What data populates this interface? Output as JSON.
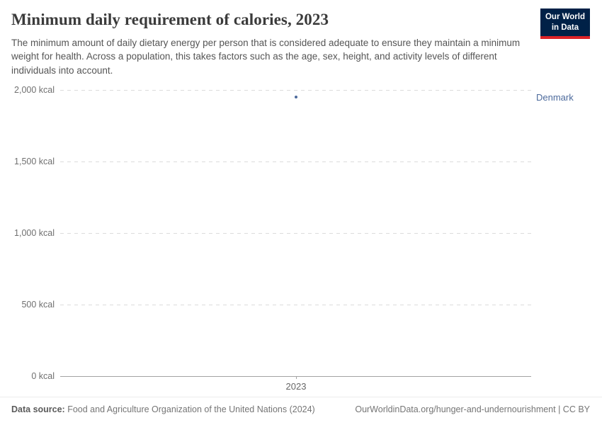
{
  "header": {
    "title": "Minimum daily requirement of calories, 2023",
    "subtitle": "The minimum amount of daily dietary energy per person that is considered adequate to ensure they maintain a minimum weight for health. Across a population, this takes factors such as the age, sex, height, and activity levels of different individuals into account."
  },
  "logo": {
    "line1": "Our World",
    "line2": "in Data",
    "bg_color": "#002147",
    "stripe_color": "#dc2227"
  },
  "chart_data": {
    "type": "scatter",
    "title": "Minimum daily requirement of calories, 2023",
    "x": [
      2023
    ],
    "xtick_labels": [
      "2023"
    ],
    "series": [
      {
        "name": "Denmark",
        "values": [
          1950
        ],
        "color": "#4c6a9c"
      }
    ],
    "unit": "kcal",
    "ylim": [
      0,
      2000
    ],
    "yticks": [
      0,
      500,
      1000,
      1500,
      2000
    ],
    "ytick_labels": [
      "0 kcal",
      "500 kcal",
      "1,000 kcal",
      "1,500 kcal",
      "2,000 kcal"
    ],
    "grid": "horizontal-dashed",
    "legend_position": "right-of-point"
  },
  "footer": {
    "data_source_label": "Data source:",
    "data_source_text": " Food and Agriculture Organization of the United Nations (2024)",
    "attribution": "OurWorldinData.org/hunger-and-undernourishment | CC BY"
  }
}
